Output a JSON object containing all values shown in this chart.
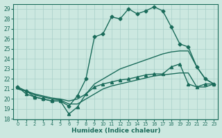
{
  "bg_color": "#cce8e0",
  "grid_color": "#a8cfc8",
  "line_color": "#1a6b5a",
  "xlabel": "Humidex (Indice chaleur)",
  "xlim": [
    -0.5,
    23.5
  ],
  "ylim": [
    18,
    29.5
  ],
  "xticks": [
    0,
    1,
    2,
    3,
    4,
    5,
    6,
    7,
    8,
    9,
    10,
    11,
    12,
    13,
    14,
    15,
    16,
    17,
    18,
    19,
    20,
    21,
    22,
    23
  ],
  "yticks": [
    18,
    19,
    20,
    21,
    22,
    23,
    24,
    25,
    26,
    27,
    28,
    29
  ],
  "series": [
    {
      "x": [
        0,
        1,
        2,
        3,
        4,
        5,
        6,
        7,
        8,
        9,
        10,
        11,
        12,
        13,
        14,
        15,
        16,
        17,
        18,
        19,
        20,
        21,
        22,
        23
      ],
      "y": [
        21.2,
        20.8,
        20.2,
        20.0,
        19.8,
        19.8,
        19.3,
        20.3,
        22.0,
        26.2,
        26.5,
        28.2,
        28.0,
        29.0,
        28.5,
        28.8,
        29.2,
        28.8,
        27.2,
        25.5,
        25.2,
        23.2,
        22.0,
        21.5
      ],
      "marker": "D",
      "markersize": 2.5,
      "linewidth": 1.0
    },
    {
      "x": [
        0,
        1,
        2,
        3,
        4,
        5,
        6,
        7,
        8,
        9,
        10,
        11,
        12,
        13,
        14,
        15,
        16,
        17,
        18,
        19,
        20,
        21,
        22,
        23
      ],
      "y": [
        21.0,
        20.8,
        20.5,
        20.3,
        20.1,
        20.0,
        19.8,
        20.0,
        20.5,
        21.5,
        22.0,
        22.5,
        23.0,
        23.3,
        23.6,
        23.9,
        24.2,
        24.5,
        24.7,
        24.8,
        24.8,
        23.2,
        22.0,
        21.5
      ],
      "marker": "None",
      "markersize": 0,
      "linewidth": 1.0
    },
    {
      "x": [
        0,
        1,
        2,
        3,
        4,
        5,
        6,
        7,
        8,
        9,
        10,
        11,
        12,
        13,
        14,
        15,
        16,
        17,
        18,
        19,
        20,
        21,
        22,
        23
      ],
      "y": [
        21.0,
        20.8,
        20.4,
        20.2,
        20.0,
        19.9,
        19.5,
        19.5,
        20.0,
        20.5,
        21.0,
        21.3,
        21.5,
        21.7,
        21.9,
        22.1,
        22.3,
        22.4,
        22.5,
        22.6,
        22.6,
        21.2,
        21.2,
        21.5
      ],
      "marker": "None",
      "markersize": 0,
      "linewidth": 1.0
    },
    {
      "x": [
        0,
        1,
        2,
        3,
        4,
        5,
        6,
        7,
        8,
        9,
        10,
        11,
        12,
        13,
        14,
        15,
        16,
        17,
        18,
        19,
        20,
        21,
        22,
        23
      ],
      "y": [
        21.2,
        20.5,
        20.2,
        20.0,
        19.8,
        19.8,
        18.5,
        19.2,
        20.5,
        21.2,
        21.5,
        21.7,
        21.9,
        22.0,
        22.2,
        22.4,
        22.5,
        22.5,
        23.2,
        23.5,
        21.5,
        21.2,
        21.5,
        21.5
      ],
      "marker": "^",
      "markersize": 3.0,
      "linewidth": 1.0
    }
  ]
}
